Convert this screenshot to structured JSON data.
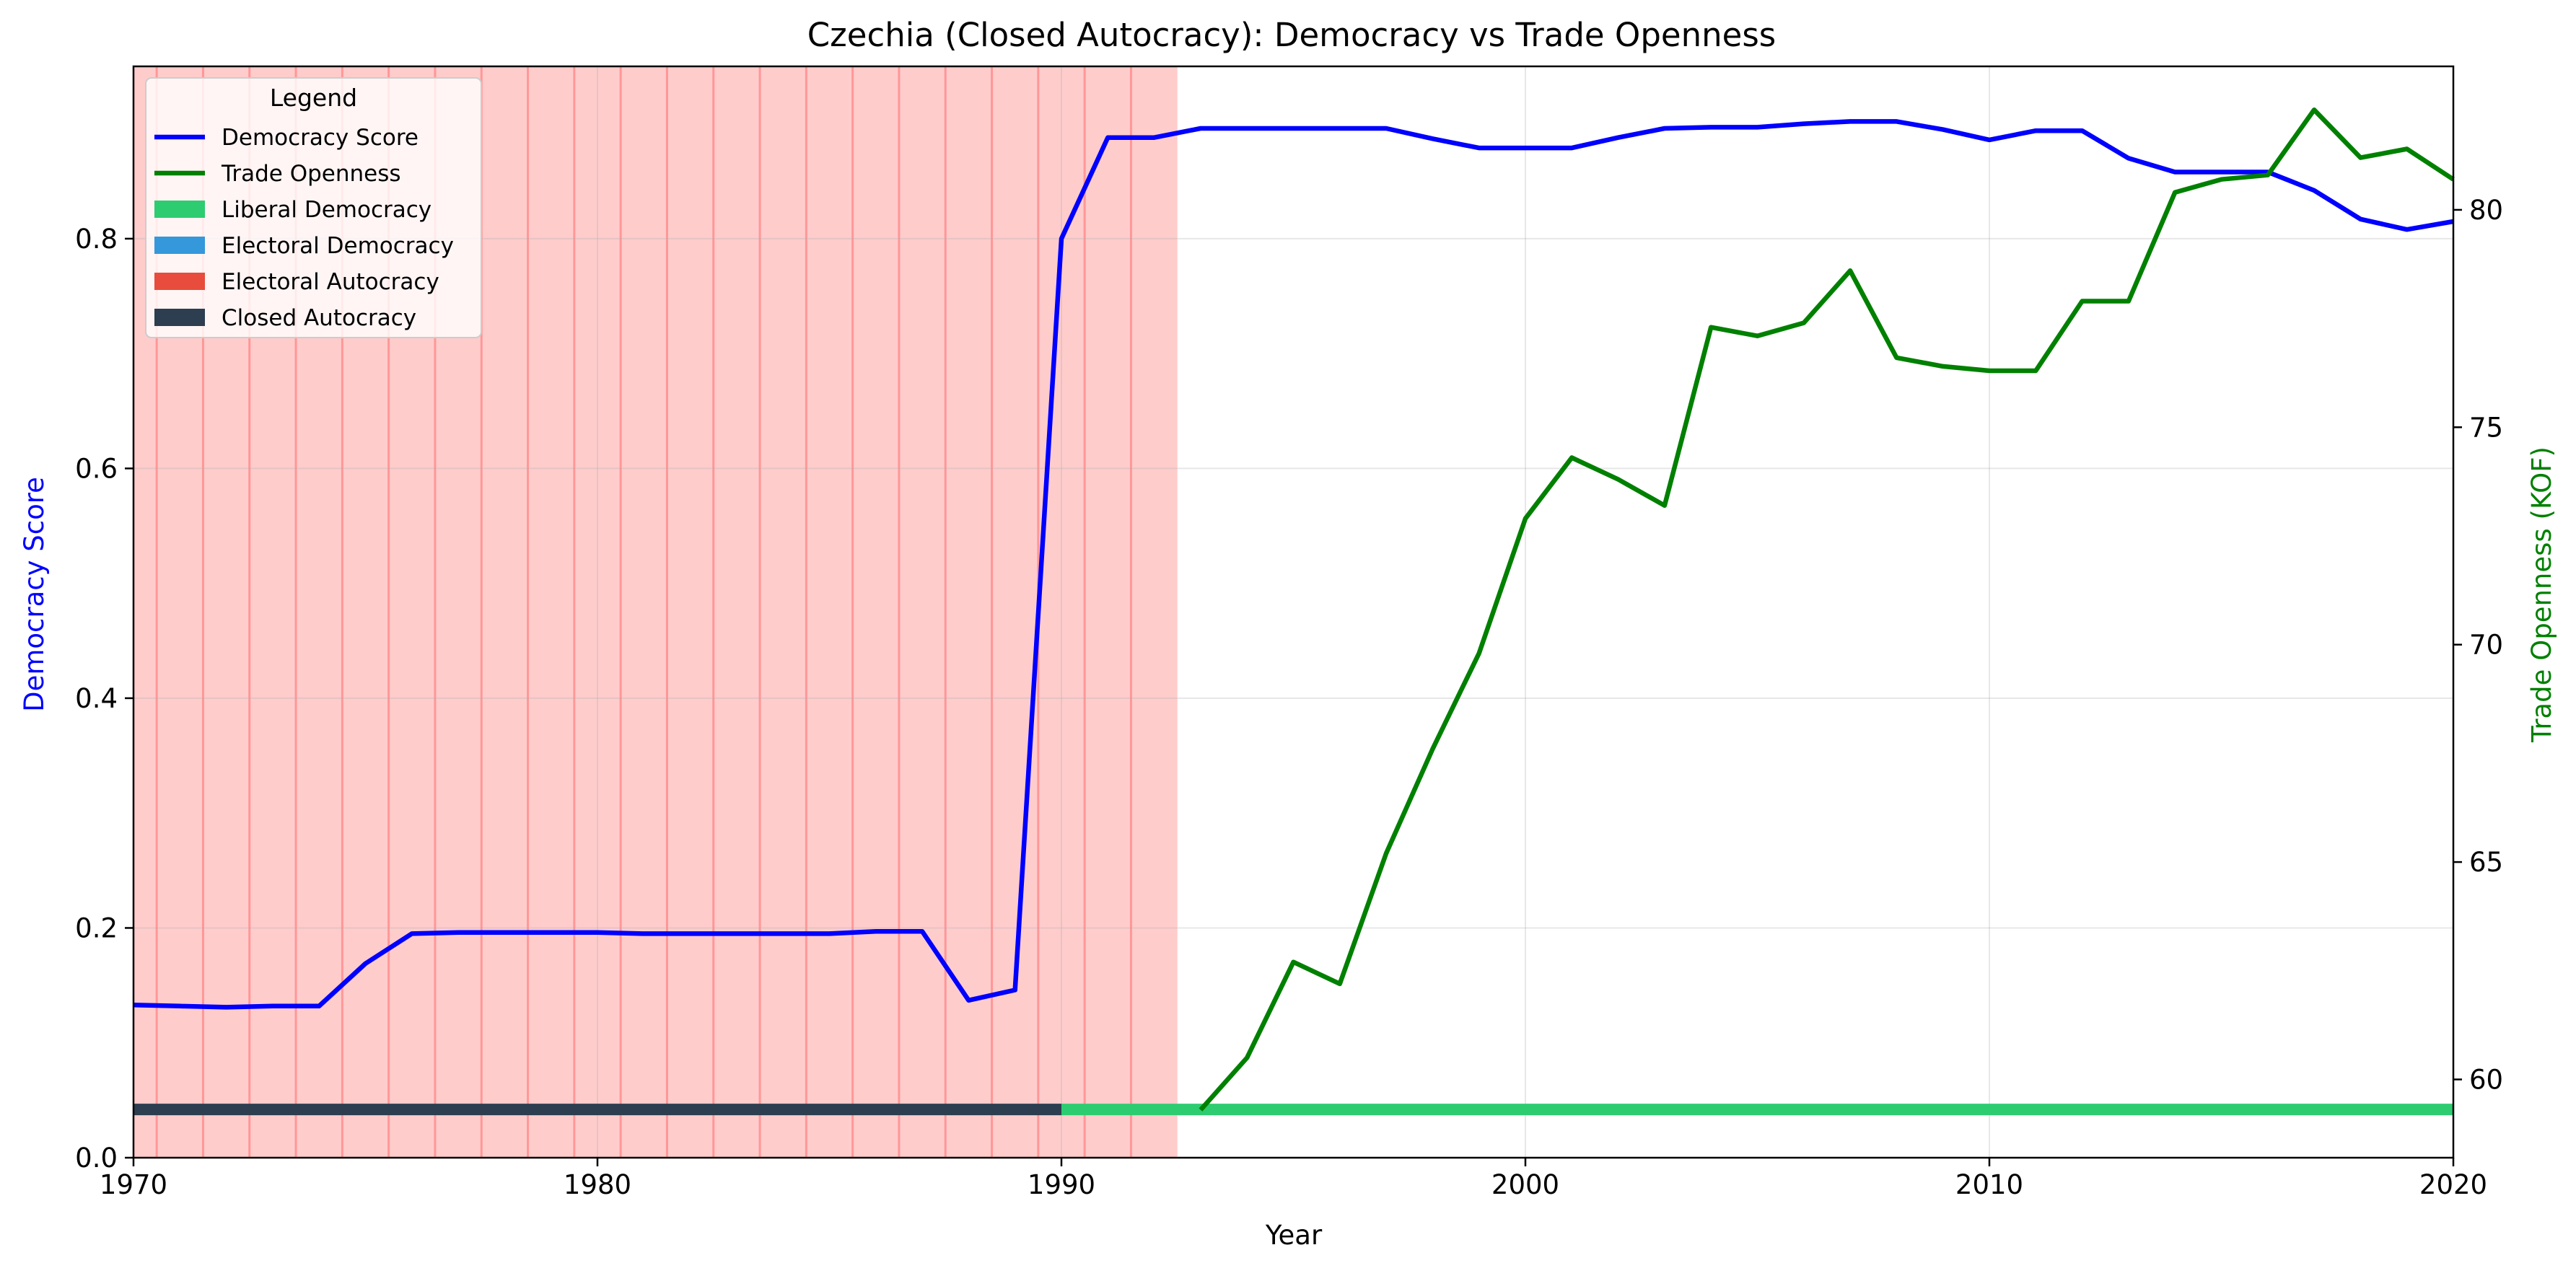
{
  "chart_data": {
    "type": "line",
    "title": "Czechia (Closed Autocracy): Democracy vs Trade Openness",
    "xlabel": "Year",
    "ylabel_left": "Democracy Score",
    "ylabel_right": "Trade Openness (KOF)",
    "xlim": [
      1970,
      2020
    ],
    "ylim_left": [
      0,
      0.95
    ],
    "ylim_right": [
      58.2,
      83.3
    ],
    "x_ticks": [
      1970,
      1980,
      1990,
      2000,
      2010,
      2020
    ],
    "y_ticks_left": [
      0.0,
      0.2,
      0.4,
      0.6,
      0.8
    ],
    "y_ticks_right": [
      60,
      65,
      70,
      75,
      80
    ],
    "x_tick_labels": [
      "1970",
      "1980",
      "1990",
      "2000",
      "2010",
      "2020"
    ],
    "y_tick_labels_left": [
      "0.0",
      "0.2",
      "0.4",
      "0.6",
      "0.8"
    ],
    "y_tick_labels_right": [
      "60",
      "65",
      "70",
      "75",
      "80"
    ],
    "grid": true,
    "legend": {
      "title": "Legend",
      "placement": "top-left",
      "entries": [
        {
          "label": "Democracy Score",
          "kind": "line",
          "color": "#0000ff"
        },
        {
          "label": "Trade Openness",
          "kind": "line",
          "color": "#008000"
        },
        {
          "label": "Liberal Democracy",
          "kind": "patch",
          "color": "#2ecc71"
        },
        {
          "label": "Electoral Democracy",
          "kind": "patch",
          "color": "#3498db"
        },
        {
          "label": "Electoral Autocracy",
          "kind": "patch",
          "color": "#e74c3c"
        },
        {
          "label": "Closed Autocracy",
          "kind": "patch",
          "color": "#2c3e50"
        }
      ]
    },
    "shaded_span": {
      "from": 1970,
      "to": 1992.5,
      "color": "#ffcccc"
    },
    "event_lines": [
      1970.5,
      1971.5,
      1972.5,
      1973.5,
      1974.5,
      1975.5,
      1976.5,
      1977.5,
      1978.5,
      1979.5,
      1980.5,
      1981.5,
      1982.5,
      1983.5,
      1984.5,
      1985.5,
      1986.5,
      1987.5,
      1988.5,
      1989.5,
      1990.5,
      1991.5
    ],
    "regime_band": {
      "y": 0.042,
      "segments": [
        {
          "regime": "Closed Autocracy",
          "from": 1970,
          "to": 1990,
          "color": "#2c3e50"
        },
        {
          "regime": "Liberal Democracy",
          "from": 1990,
          "to": 2020,
          "color": "#2ecc71"
        }
      ]
    },
    "series": [
      {
        "name": "Democracy Score",
        "axis": "left",
        "color": "#0000ff",
        "points": [
          [
            1970,
            0.133
          ],
          [
            1971,
            0.132
          ],
          [
            1972,
            0.131
          ],
          [
            1973,
            0.132
          ],
          [
            1974,
            0.132
          ],
          [
            1975,
            0.169
          ],
          [
            1976,
            0.195
          ],
          [
            1977,
            0.196
          ],
          [
            1978,
            0.196
          ],
          [
            1979,
            0.196
          ],
          [
            1980,
            0.196
          ],
          [
            1981,
            0.195
          ],
          [
            1982,
            0.195
          ],
          [
            1983,
            0.195
          ],
          [
            1984,
            0.195
          ],
          [
            1985,
            0.195
          ],
          [
            1986,
            0.197
          ],
          [
            1987,
            0.197
          ],
          [
            1988,
            0.137
          ],
          [
            1989,
            0.146
          ],
          [
            1990,
            0.8
          ],
          [
            1991,
            0.888
          ],
          [
            1992,
            0.888
          ],
          [
            1993,
            0.896
          ],
          [
            1994,
            0.896
          ],
          [
            1995,
            0.896
          ],
          [
            1996,
            0.896
          ],
          [
            1997,
            0.896
          ],
          [
            1998,
            0.887
          ],
          [
            1999,
            0.879
          ],
          [
            2000,
            0.879
          ],
          [
            2001,
            0.879
          ],
          [
            2002,
            0.888
          ],
          [
            2003,
            0.896
          ],
          [
            2004,
            0.897
          ],
          [
            2005,
            0.897
          ],
          [
            2006,
            0.9
          ],
          [
            2007,
            0.902
          ],
          [
            2008,
            0.902
          ],
          [
            2009,
            0.895
          ],
          [
            2010,
            0.886
          ],
          [
            2011,
            0.894
          ],
          [
            2012,
            0.894
          ],
          [
            2013,
            0.87
          ],
          [
            2014,
            0.858
          ],
          [
            2015,
            0.858
          ],
          [
            2016,
            0.858
          ],
          [
            2017,
            0.842
          ],
          [
            2018,
            0.817
          ],
          [
            2019,
            0.808
          ],
          [
            2020,
            0.815
          ]
        ]
      },
      {
        "name": "Trade Openness",
        "axis": "right",
        "color": "#008000",
        "points": [
          [
            1993,
            59.3
          ],
          [
            1994,
            60.5
          ],
          [
            1995,
            62.7
          ],
          [
            1996,
            62.2
          ],
          [
            1997,
            65.2
          ],
          [
            1998,
            67.6
          ],
          [
            1999,
            69.8
          ],
          [
            2000,
            72.9
          ],
          [
            2001,
            74.3
          ],
          [
            2002,
            73.8
          ],
          [
            2003,
            73.2
          ],
          [
            2004,
            77.3
          ],
          [
            2005,
            77.1
          ],
          [
            2006,
            77.4
          ],
          [
            2007,
            78.6
          ],
          [
            2008,
            76.6
          ],
          [
            2009,
            76.4
          ],
          [
            2010,
            76.3
          ],
          [
            2011,
            76.3
          ],
          [
            2012,
            77.9
          ],
          [
            2013,
            77.9
          ],
          [
            2014,
            80.4
          ],
          [
            2015,
            80.7
          ],
          [
            2016,
            80.8
          ],
          [
            2017,
            82.3
          ],
          [
            2018,
            81.2
          ],
          [
            2019,
            81.4
          ],
          [
            2020,
            80.7
          ]
        ]
      }
    ]
  }
}
